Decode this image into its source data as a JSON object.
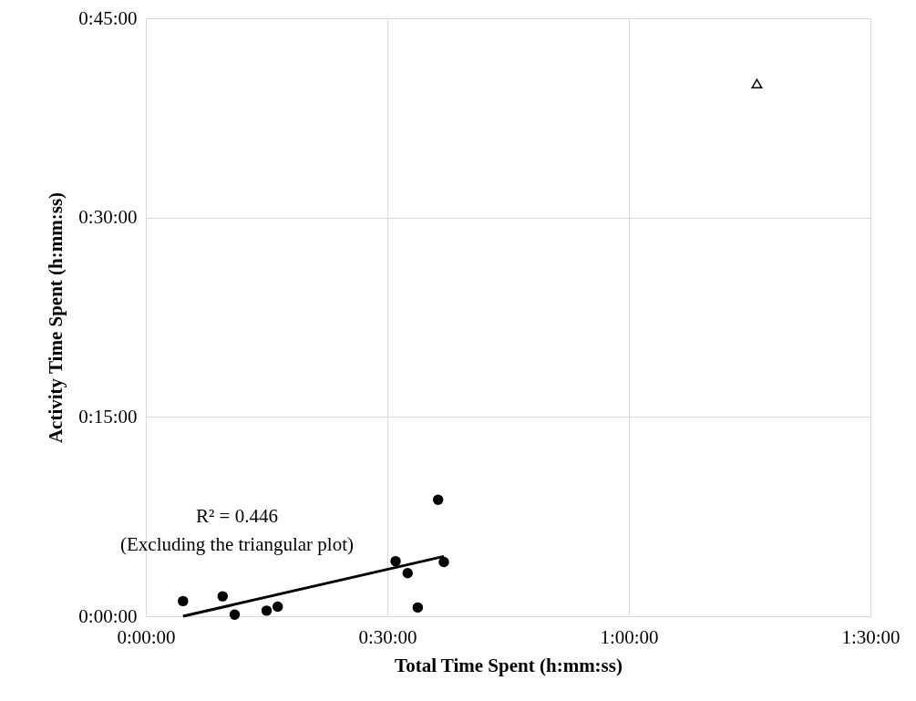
{
  "chart_data": {
    "type": "scatter",
    "xlabel": "Total Time Spent (h:mm:ss)",
    "ylabel": "Activity Time Spent (h:mm:ss)",
    "series": [
      {
        "marker": "circle",
        "color": "#000000",
        "x": [
          0.077,
          0.159,
          0.184,
          0.25,
          0.273,
          0.517,
          0.542,
          0.563,
          0.605,
          0.617
        ],
        "values": [
          0.019,
          0.025,
          0.002,
          0.007,
          0.012,
          0.069,
          0.054,
          0.011,
          0.146,
          0.068
        ]
      },
      {
        "marker": "triangle",
        "color": "#000000",
        "x": [
          1.265
        ],
        "values": [
          0.668
        ]
      },
      {
        "type": "line",
        "marker": "none",
        "color": "#000000",
        "x": [
          0.077,
          0.617
        ],
        "values": [
          0.0,
          0.075
        ]
      }
    ],
    "xlim": [
      0,
      1.5
    ],
    "ylim": [
      0,
      0.75
    ],
    "xticks": [
      {
        "value": 0,
        "label": "0:00:00"
      },
      {
        "value": 0.5,
        "label": "0:30:00"
      },
      {
        "value": 1,
        "label": "1:00:00"
      },
      {
        "value": 1.5,
        "label": "1:30:00"
      }
    ],
    "yticks": [
      {
        "value": 0,
        "label": "0:00:00"
      },
      {
        "value": 0.25,
        "label": "0:15:00"
      },
      {
        "value": 0.5,
        "label": "0:30:00"
      },
      {
        "value": 0.75,
        "label": "0:45:00"
      }
    ],
    "grid": true,
    "annotations": [
      "R² = 0.446",
      "(Excluding the triangular plot)"
    ]
  }
}
